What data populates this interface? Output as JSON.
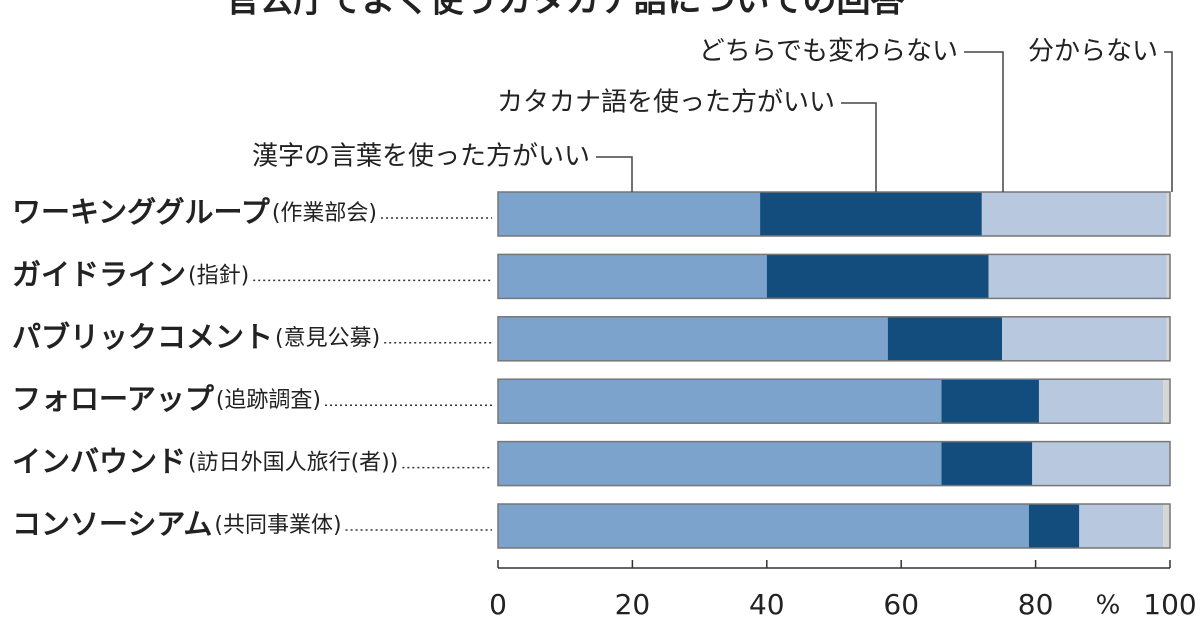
{
  "chart_data": {
    "type": "stacked-bar-horizontal",
    "title": "官公庁でよく使うカタカナ語についての回答",
    "categories": [
      "ワーキンググループ",
      "ガイドライン",
      "パブリックコメント",
      "フォローアップ",
      "インバウンド",
      "コンソーシアム"
    ],
    "category_notes": [
      "(作業部会)",
      "(指針)",
      "(意見公募)",
      "(追跡調査)",
      "(訪日外国人旅行(者))",
      "(共同事業体)"
    ],
    "series": [
      {
        "name": "漢字の言葉を使った方がいい",
        "color": "#7ba3cc",
        "values": [
          39,
          40,
          58,
          66,
          66,
          79
        ]
      },
      {
        "name": "カタカナ語を使った方がいい",
        "color": "#134d7d",
        "values": [
          33,
          33,
          17,
          14.5,
          13.5,
          7.5
        ]
      },
      {
        "name": "どちらでも変わらない",
        "color": "#b8c8de",
        "values": [
          27.5,
          26.5,
          24.5,
          18.5,
          20.5,
          12.5
        ]
      },
      {
        "name": "分からない",
        "color": "#d6d6d6",
        "values": [
          0.5,
          0.5,
          0.5,
          1,
          0,
          1
        ]
      }
    ],
    "xlim": [
      0,
      100
    ],
    "xticks": [
      0,
      20,
      40,
      60,
      80,
      100
    ],
    "xlabel": "%"
  }
}
